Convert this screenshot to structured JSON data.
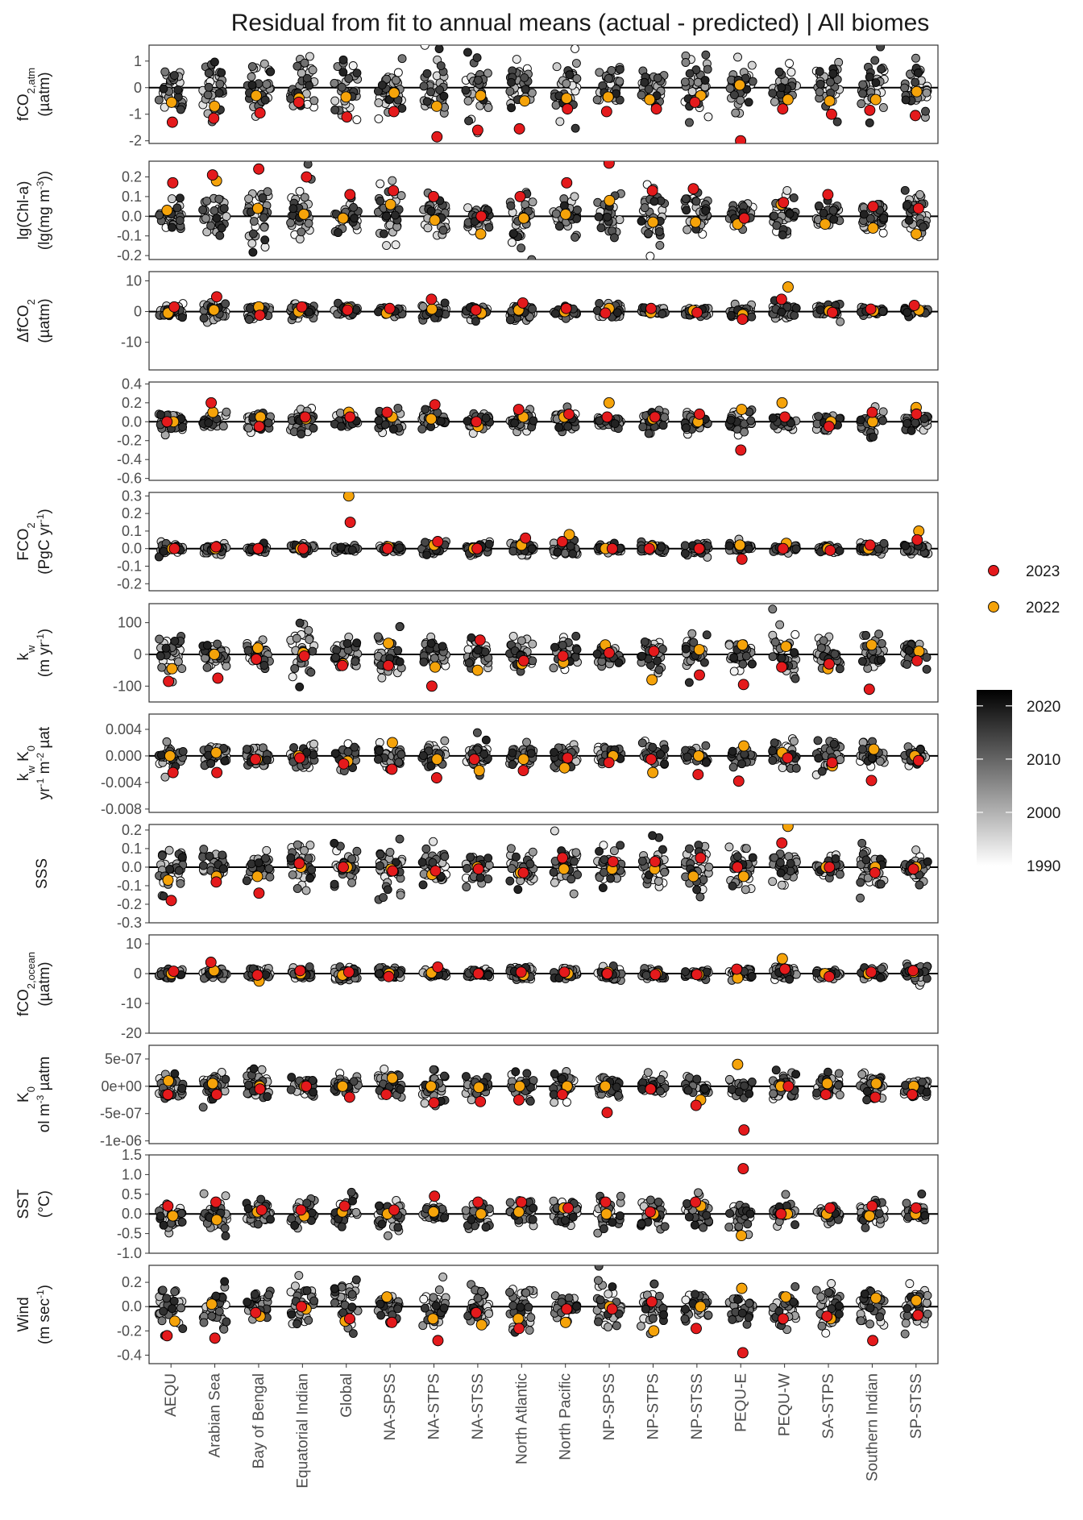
{
  "chart_data": {
    "type": "scatter",
    "title": "Residual from fit to annual means (actual - predicted) | All biomes",
    "categories": [
      "AEQU",
      "Arabian Sea",
      "Bay of Bengal",
      "Equatorial Indian",
      "Global",
      "NA-SPSS",
      "NA-STPS",
      "NA-STSS",
      "North Atlantic",
      "North Pacific",
      "NP-SPSS",
      "NP-STPS",
      "NP-STSS",
      "PEQU-E",
      "PEQU-W",
      "SA-STPS",
      "Southern Indian",
      "SP-STSS"
    ],
    "legend": {
      "placement": "right",
      "points": [
        {
          "label": "2023",
          "color": "#e41a1c"
        },
        {
          "label": "2022",
          "color": "#f5a30a"
        }
      ],
      "colorbar": {
        "min": 1990,
        "max": 2023,
        "ticks": [
          "2020",
          "2010",
          "2000",
          "1990"
        ],
        "low_color": "#ffffff",
        "high_color": "#000000"
      }
    },
    "year_range": [
      1990,
      2023
    ],
    "panels": [
      {
        "key": "fco2atm",
        "ylabel_lines": [
          "fCO<tspan baseline-shift=\"sub\" font-size=\"13\">2,atm</tspan>",
          "(µatm)"
        ],
        "ylim": [
          -2.1,
          1.6
        ],
        "ticks": [
          "1",
          "0",
          "-1",
          "-2"
        ],
        "tick_values": [
          1,
          0,
          -1,
          -2
        ],
        "spread": 0.55,
        "v2023": [
          -1.3,
          -1.15,
          -0.95,
          -0.55,
          -1.1,
          -0.9,
          -1.85,
          -1.6,
          -1.55,
          -0.8,
          -0.9,
          -0.8,
          -0.55,
          -2.0,
          -0.8,
          -1.0,
          -0.85,
          -1.05
        ],
        "v2022": [
          -0.55,
          -0.7,
          -0.3,
          -0.4,
          -0.35,
          -0.2,
          -0.7,
          -0.3,
          -0.5,
          -0.4,
          -0.35,
          -0.45,
          -0.3,
          0.1,
          -0.45,
          -0.5,
          -0.45,
          -0.15
        ]
      },
      {
        "key": "chla",
        "ylabel_lines": [
          "lg(Chl-a)",
          "(lg(mg m<tspan baseline-shift=\"super\" font-size=\"12\">-3</tspan>))"
        ],
        "ylim": [
          -0.22,
          0.28
        ],
        "ticks": [
          "0.2",
          "0.1",
          "0.0",
          "-0.1",
          "-0.2"
        ],
        "tick_values": [
          0.2,
          0.1,
          0,
          -0.1,
          -0.2
        ],
        "spread": 0.08,
        "v2023": [
          0.17,
          0.21,
          0.24,
          0.2,
          0.11,
          0.13,
          0.1,
          0.0,
          0.1,
          0.17,
          0.27,
          0.13,
          0.14,
          -0.01,
          0.07,
          0.11,
          0.05,
          0.04
        ],
        "v2022": [
          0.03,
          0.18,
          0.04,
          0.01,
          -0.01,
          0.06,
          -0.02,
          -0.09,
          -0.01,
          0.01,
          0.08,
          -0.03,
          -0.03,
          -0.04,
          0.06,
          -0.04,
          -0.06,
          -0.09
        ]
      },
      {
        "key": "dfco2",
        "ylabel_lines": [
          "ΔfCO<tspan baseline-shift=\"sub\" font-size=\"13\">2</tspan>",
          "(µatm)"
        ],
        "ylim": [
          -19,
          13
        ],
        "ticks": [
          "10",
          "0",
          "-10"
        ],
        "tick_values": [
          10,
          0,
          -10
        ],
        "spread": 1.4,
        "v2023": [
          1.5,
          4.8,
          -1.2,
          1.5,
          0.5,
          1.0,
          4.0,
          0.5,
          2.8,
          1.0,
          -0.5,
          1.0,
          -0.3,
          -2.5,
          4.0,
          -0.3,
          0.8,
          2.0
        ],
        "v2022": [
          -0.5,
          0.5,
          1.5,
          0.0,
          1.0,
          -0.5,
          0.8,
          -0.5,
          0.5,
          0.0,
          1.0,
          -0.3,
          0.3,
          -1.0,
          8.0,
          0.2,
          0.2,
          0.5
        ]
      },
      {
        "key": "flux_density",
        "ylabel_lines": [],
        "ylim": [
          -0.62,
          0.42
        ],
        "ticks": [
          "0.4",
          "0.2",
          "0.0",
          "-0.2",
          "-0.4",
          "-0.6"
        ],
        "tick_values": [
          0.4,
          0.2,
          0,
          -0.2,
          -0.4,
          -0.6
        ],
        "spread": 0.07,
        "v2023": [
          0.0,
          0.2,
          -0.05,
          0.05,
          0.05,
          0.1,
          0.18,
          0.0,
          0.13,
          0.08,
          0.05,
          0.05,
          0.08,
          -0.3,
          0.05,
          -0.05,
          0.1,
          0.08
        ],
        "v2022": [
          0.0,
          0.1,
          0.05,
          0.03,
          0.1,
          0.05,
          0.03,
          -0.05,
          0.05,
          0.05,
          0.2,
          0.03,
          0.0,
          0.13,
          0.2,
          0.0,
          0.0,
          0.15
        ]
      },
      {
        "key": "fco2_flux",
        "ylabel_lines": [
          "FCO<tspan baseline-shift=\"sub\" font-size=\"13\">2</tspan>",
          "(PgC yr<tspan baseline-shift=\"super\" font-size=\"12\">-1</tspan>)"
        ],
        "ylim": [
          -0.24,
          0.32
        ],
        "ticks": [
          "0.3",
          "0.2",
          "0.1",
          "0.0",
          "-0.1",
          "-0.2"
        ],
        "tick_values": [
          0.3,
          0.2,
          0.1,
          0,
          -0.1,
          -0.2
        ],
        "spread": 0.02,
        "v2023": [
          0.0,
          0.01,
          0.0,
          0.0,
          0.15,
          0.0,
          0.04,
          0.0,
          0.06,
          0.04,
          0.0,
          0.0,
          0.0,
          -0.06,
          0.0,
          -0.01,
          0.02,
          0.05
        ],
        "v2022": [
          0.0,
          0.0,
          0.0,
          0.0,
          0.3,
          0.01,
          0.02,
          0.0,
          0.02,
          0.08,
          0.0,
          0.01,
          0.0,
          0.02,
          0.03,
          0.0,
          0.0,
          0.1
        ]
      },
      {
        "key": "kw",
        "ylabel_lines": [
          "k<tspan baseline-shift=\"sub\" font-size=\"13\">w</tspan>",
          "(m yr<tspan baseline-shift=\"super\" font-size=\"12\">-1</tspan>)"
        ],
        "ylim": [
          -150,
          160
        ],
        "ticks": [
          "100",
          "0",
          "-100"
        ],
        "tick_values": [
          100,
          0,
          -100
        ],
        "spread": 40,
        "v2023": [
          -85,
          -75,
          -15,
          -5,
          -35,
          -35,
          -100,
          45,
          -20,
          -5,
          5,
          10,
          -65,
          -95,
          -40,
          -30,
          -110,
          -20
        ],
        "v2022": [
          -45,
          0,
          20,
          5,
          -30,
          35,
          -40,
          -50,
          -30,
          -25,
          30,
          -80,
          15,
          30,
          25,
          -45,
          30,
          10
        ]
      },
      {
        "key": "kwk0",
        "ylabel_lines": [
          "k<tspan baseline-shift=\"sub\" font-size=\"13\">w</tspan> K<tspan baseline-shift=\"sub\" font-size=\"13\">0</tspan>",
          "yr<tspan baseline-shift=\"super\" font-size=\"12\">-1</tspan> m<tspan baseline-shift=\"super\" font-size=\"12\">-2</tspan> µat"
        ],
        "ylim": [
          -0.0085,
          0.0063
        ],
        "ticks": [
          "0.004",
          "0.000",
          "-0.004",
          "-0.008"
        ],
        "tick_values": [
          0.004,
          0,
          -0.004,
          -0.008
        ],
        "spread": 0.0012,
        "v2023": [
          -0.0025,
          -0.0025,
          -0.0005,
          -0.0003,
          -0.0012,
          -0.002,
          -0.0033,
          -0.0005,
          -0.0022,
          -0.0003,
          -0.001,
          -0.0005,
          -0.0028,
          -0.0038,
          -0.0003,
          -0.001,
          -0.0037,
          -0.0007
        ],
        "v2022": [
          0.0,
          0.0005,
          -0.0005,
          0.0,
          -0.0008,
          0.002,
          -0.0005,
          -0.0022,
          -0.0005,
          -0.0018,
          0.0,
          -0.0025,
          0.0,
          0.0015,
          0.0005,
          -0.0015,
          0.001,
          0.0
        ]
      },
      {
        "key": "sss",
        "ylabel_lines": [
          "SSS"
        ],
        "ylim": [
          -0.3,
          0.23
        ],
        "ticks": [
          "0.2",
          "0.1",
          "0.0",
          "-0.1",
          "-0.2",
          "-0.3"
        ],
        "tick_values": [
          0.2,
          0.1,
          0,
          -0.1,
          -0.2,
          -0.3
        ],
        "spread": 0.07,
        "v2023": [
          -0.18,
          -0.08,
          -0.14,
          0.02,
          0.0,
          -0.02,
          -0.02,
          -0.01,
          -0.03,
          0.05,
          0.03,
          0.03,
          0.05,
          0.0,
          0.13,
          0.0,
          -0.03,
          -0.01
        ],
        "v2022": [
          -0.07,
          -0.05,
          -0.05,
          0.0,
          0.0,
          -0.01,
          -0.04,
          0.0,
          -0.03,
          -0.01,
          -0.01,
          -0.01,
          -0.05,
          -0.05,
          0.22,
          0.0,
          0.0,
          0.0
        ]
      },
      {
        "key": "fco2ocean",
        "ylabel_lines": [
          "fCO<tspan baseline-shift=\"sub\" font-size=\"13\">2,ocean</tspan>",
          "(µatm)"
        ],
        "ylim": [
          -20,
          13
        ],
        "ticks": [
          "10",
          "0",
          "-10",
          "-20"
        ],
        "tick_values": [
          10,
          0,
          -10,
          -20
        ],
        "spread": 1.3,
        "v2023": [
          0.8,
          3.8,
          -0.5,
          1.0,
          0.5,
          -1.0,
          2.2,
          0.0,
          0.5,
          0.5,
          0.0,
          -0.3,
          -0.3,
          1.5,
          1.5,
          -1.0,
          0.5,
          1.0
        ],
        "v2022": [
          0.0,
          1.0,
          -2.5,
          0.0,
          -0.5,
          0.0,
          0.3,
          0.0,
          -0.5,
          0.0,
          0.5,
          0.0,
          -0.3,
          -1.5,
          5.0,
          0.0,
          0.0,
          0.5
        ]
      },
      {
        "key": "k0",
        "ylabel_lines": [
          "K<tspan baseline-shift=\"sub\" font-size=\"13\">0</tspan>",
          "ol m<tspan baseline-shift=\"super\" font-size=\"12\">-3</tspan> µatm"
        ],
        "ylim": [
          -1.05e-06,
          7.5e-07
        ],
        "ticks": [
          "5e-07",
          "0e+00",
          "-5e-07",
          "-1e-06"
        ],
        "tick_values": [
          5e-07,
          0,
          -5e-07,
          -1e-06
        ],
        "spread": 1.5e-07,
        "v2023": [
          -1.5e-07,
          -1.5e-07,
          -5e-08,
          0,
          -2e-07,
          -1.5e-07,
          -3e-07,
          -2.8e-07,
          -2.5e-07,
          -1.5e-07,
          -4.8e-07,
          -5e-08,
          -3.5e-07,
          -8e-07,
          0,
          -1.5e-07,
          -2e-07,
          -1.5e-07
        ],
        "v2022": [
          1e-07,
          5e-08,
          0,
          0,
          0,
          1.5e-07,
          0,
          -2e-08,
          0,
          0,
          0,
          -5e-08,
          -2.5e-07,
          4e-07,
          0,
          5e-08,
          5e-08,
          0
        ]
      },
      {
        "key": "sst",
        "ylabel_lines": [
          "SST",
          "(°C)"
        ],
        "ylim": [
          -1.0,
          1.5
        ],
        "ticks": [
          "1.5",
          "1.0",
          "0.5",
          "0.0",
          "-0.5",
          "-1.0"
        ],
        "tick_values": [
          1.5,
          1,
          0.5,
          0,
          -0.5,
          -1
        ],
        "spread": 0.22,
        "v2023": [
          0.2,
          0.3,
          0.1,
          0.1,
          0.2,
          0.1,
          0.45,
          0.3,
          0.3,
          0.15,
          0.3,
          0.05,
          0.3,
          1.15,
          0.0,
          0.15,
          0.2,
          0.15
        ],
        "v2022": [
          -0.05,
          -0.15,
          0.05,
          -0.05,
          0.05,
          0.0,
          0.05,
          0.0,
          0.05,
          0.15,
          0.0,
          0.0,
          0.2,
          -0.55,
          0.0,
          0.0,
          -0.05,
          0.0
        ]
      },
      {
        "key": "wind",
        "ylabel_lines": [
          "Wind",
          "(m sec<tspan baseline-shift=\"super\" font-size=\"12\">-1</tspan>)"
        ],
        "ylim": [
          -0.47,
          0.34
        ],
        "ticks": [
          "0.2",
          "0.0",
          "-0.2",
          "-0.4"
        ],
        "tick_values": [
          0.2,
          0,
          -0.2,
          -0.4
        ],
        "spread": 0.11,
        "v2023": [
          -0.24,
          -0.26,
          -0.05,
          0.0,
          -0.1,
          -0.13,
          -0.28,
          -0.05,
          -0.18,
          -0.02,
          -0.02,
          0.04,
          -0.18,
          -0.38,
          -0.1,
          -0.08,
          -0.28,
          -0.07
        ],
        "v2022": [
          -0.12,
          0.02,
          -0.08,
          -0.02,
          -0.12,
          0.08,
          -0.1,
          -0.15,
          -0.1,
          -0.13,
          0.0,
          -0.2,
          0.0,
          0.15,
          0.08,
          -0.1,
          0.07,
          0.05
        ]
      }
    ]
  }
}
